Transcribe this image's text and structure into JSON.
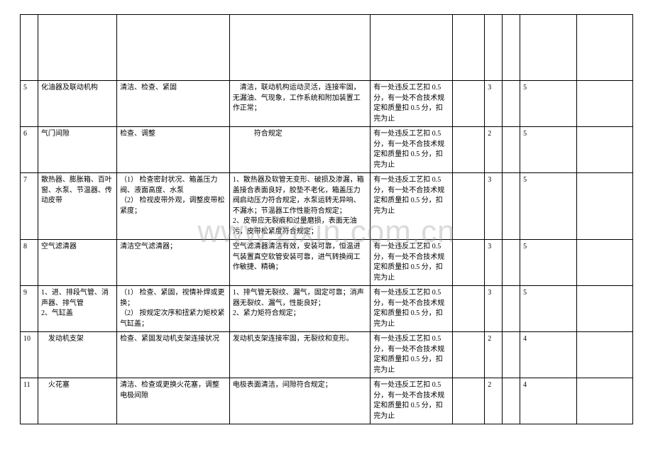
{
  "watermark": "www.zixin.com.cn",
  "rows": [
    {
      "num": "",
      "item": "",
      "work": "",
      "tech": "",
      "score": "",
      "c5": "",
      "c6": "",
      "c7": "",
      "c8": "",
      "c9": ""
    },
    {
      "num": "5",
      "item": "化油器及联动机构",
      "work": "清洁、检查、紧固",
      "tech": "　清洁，联动机构运动灵活，连接牢固，无漏油、气现象，工作系统和附加装置工作正常；",
      "score": "有一处违反工艺扣 0.5 分，有一处不合技术规定和质量扣 0.5 分，扣完为止",
      "c5": "",
      "c6": "3",
      "c7": "",
      "c8": "5",
      "c9": ""
    },
    {
      "num": "6",
      "item": "气门间隙",
      "work": "检查、调整",
      "tech": "　　　符合规定",
      "score": "有一处违反工艺扣 0.5 分，有一处不合技术规定和质量扣 0.5 分，扣完为止",
      "c5": "",
      "c6": "2",
      "c7": "",
      "c8": "5",
      "c9": ""
    },
    {
      "num": "7",
      "item": "散热器、膨胀箱、百叶窗、水泵、节温器、传动皮带",
      "work": "（1） 检查密封状况、箱盖压力阀、液面高度、水泵\n（2） 检视皮带外观，调整皮带松紧度；",
      "tech": "1、散热器及软管无变形、破损及渗漏，箱盖接合表面良好，胶垫不老化，箱盖压力阀启动压力符合规定，水泵运转无异响、不漏水；节温器工作性能符合规定；\n2、皮带应无裂痕和过量磨损，表面无油污，皮带松紧度符合规定；",
      "score": "有一处违反工艺扣 0.5 分，有一处不合技术规定和质量扣 0.5 分，扣完为止",
      "c5": "",
      "c6": "3",
      "c7": "",
      "c8": "5",
      "c9": ""
    },
    {
      "num": "8",
      "item": "空气滤清器",
      "work": "清洁空气滤清器；",
      "tech": "空气滤清器清洁有效，安装可靠，恒温进气装置真空软管安装可靠，进气转换阀工作敏捷、精确；",
      "score": "有一处违反工艺扣 0.5 分，有一处不合技术规定和质量扣 0.5 分，扣完为止",
      "c5": "",
      "c6": "3",
      "c7": "",
      "c8": "5",
      "c9": ""
    },
    {
      "num": "9",
      "item": "1、进、排段气管、消声器、排气管\n2、气缸盖",
      "work": "（1） 检查、紧固，视情补焊或更换；\n（2） 按规定次序和扭紧力矩校紧气缸盖；",
      "tech": "1、排气管无裂纹、漏气，固定可靠；消声器无裂纹、漏气，性能良好；\n2、紧力矩符合规定；",
      "score": "有一处违反工艺扣 0.5 分，有一处不合技术规定和质量扣 0.5 分，扣完为止",
      "c5": "",
      "c6": "3",
      "c7": "",
      "c8": "5",
      "c9": ""
    },
    {
      "num": "10",
      "item": "　发动机支架",
      "work": "检查、紧固发动机支架连接状况",
      "tech": "发动机支架连接牢固，无裂纹和变形。",
      "score": "有一处违反工艺扣 0.5 分，有一处不合技术规定和质量扣 0.5 分，扣完为止",
      "c5": "",
      "c6": "2",
      "c7": "",
      "c8": "4",
      "c9": ""
    },
    {
      "num": "11",
      "item": "　火花塞",
      "work": "清洁、检查或更换火花塞，调整电极间隙",
      "tech": "电极表面清洁，间隙符合规定；",
      "score": "有一处违反工艺扣 0.5 分，有一处不合技术规定和质量扣 0.5 分，扣完为止",
      "c5": "",
      "c6": "2",
      "c7": "",
      "c8": "4",
      "c9": ""
    }
  ]
}
